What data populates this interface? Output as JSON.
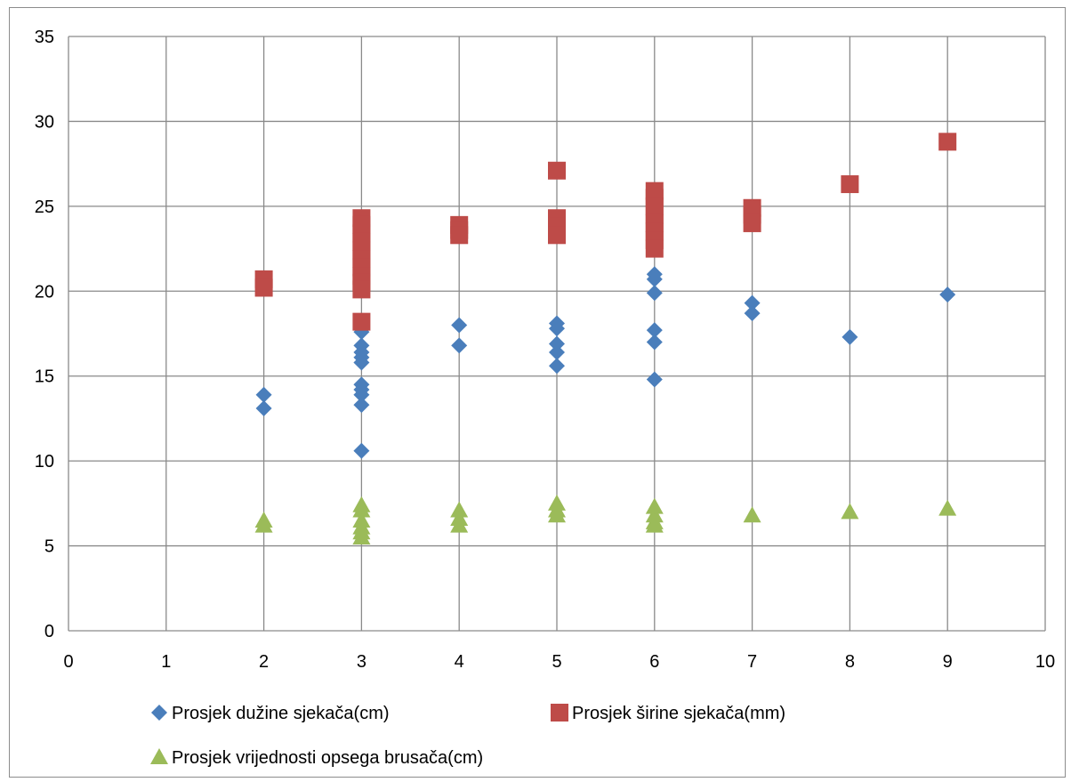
{
  "chart_data": {
    "type": "scatter",
    "title": "",
    "xlabel": "",
    "ylabel": "",
    "xlim": [
      0,
      10
    ],
    "ylim": [
      0,
      35
    ],
    "xticks": [
      0,
      1,
      2,
      3,
      4,
      5,
      6,
      7,
      8,
      9,
      10
    ],
    "yticks": [
      0,
      5,
      10,
      15,
      20,
      25,
      30,
      35
    ],
    "grid": true,
    "legend": "bottom",
    "series": [
      {
        "name": "Prosjek dužine sjekača(cm)",
        "marker": "diamond",
        "color": "#4a7ebb",
        "points": [
          [
            2,
            13.9
          ],
          [
            2,
            13.1
          ],
          [
            3,
            17.6
          ],
          [
            3,
            16.8
          ],
          [
            3,
            16.4
          ],
          [
            3,
            16.1
          ],
          [
            3,
            15.8
          ],
          [
            3,
            14.5
          ],
          [
            3,
            14.2
          ],
          [
            3,
            13.9
          ],
          [
            3,
            13.3
          ],
          [
            3,
            10.6
          ],
          [
            4,
            18.0
          ],
          [
            4,
            16.8
          ],
          [
            5,
            18.1
          ],
          [
            5,
            17.8
          ],
          [
            5,
            16.9
          ],
          [
            5,
            16.4
          ],
          [
            5,
            15.6
          ],
          [
            6,
            21.0
          ],
          [
            6,
            20.7
          ],
          [
            6,
            19.9
          ],
          [
            6,
            17.7
          ],
          [
            6,
            17.0
          ],
          [
            6,
            14.8
          ],
          [
            7,
            19.3
          ],
          [
            7,
            18.7
          ],
          [
            8,
            17.3
          ],
          [
            9,
            19.8
          ]
        ]
      },
      {
        "name": "Prosjek širine sjekača(mm)",
        "marker": "square",
        "color": "#be4b48",
        "points": [
          [
            2,
            20.7
          ],
          [
            2,
            20.2
          ],
          [
            3,
            24.3
          ],
          [
            3,
            23.9
          ],
          [
            3,
            23.4
          ],
          [
            3,
            22.9
          ],
          [
            3,
            22.4
          ],
          [
            3,
            21.9
          ],
          [
            3,
            21.4
          ],
          [
            3,
            20.9
          ],
          [
            3,
            20.5
          ],
          [
            3,
            20.1
          ],
          [
            3,
            18.2
          ],
          [
            4,
            23.9
          ],
          [
            4,
            23.6
          ],
          [
            4,
            23.3
          ],
          [
            5,
            27.1
          ],
          [
            5,
            24.3
          ],
          [
            5,
            23.8
          ],
          [
            5,
            23.3
          ],
          [
            6,
            25.9
          ],
          [
            6,
            25.5
          ],
          [
            6,
            25.0
          ],
          [
            6,
            24.5
          ],
          [
            6,
            24.0
          ],
          [
            6,
            23.5
          ],
          [
            6,
            23.0
          ],
          [
            6,
            22.5
          ],
          [
            7,
            24.9
          ],
          [
            7,
            24.5
          ],
          [
            7,
            24.0
          ],
          [
            8,
            26.3
          ],
          [
            9,
            28.8
          ]
        ]
      },
      {
        "name": "Prosjek vrijednosti opsega brusača(cm)",
        "marker": "triangle",
        "color": "#9bbb59",
        "points": [
          [
            2,
            6.5
          ],
          [
            2,
            6.2
          ],
          [
            3,
            7.4
          ],
          [
            3,
            7.1
          ],
          [
            3,
            6.5
          ],
          [
            3,
            6.1
          ],
          [
            3,
            5.8
          ],
          [
            3,
            5.5
          ],
          [
            4,
            7.1
          ],
          [
            4,
            6.6
          ],
          [
            4,
            6.2
          ],
          [
            5,
            7.5
          ],
          [
            5,
            7.1
          ],
          [
            5,
            6.8
          ],
          [
            6,
            7.3
          ],
          [
            6,
            6.8
          ],
          [
            6,
            6.4
          ],
          [
            6,
            6.2
          ],
          [
            7,
            6.8
          ],
          [
            8,
            7.0
          ],
          [
            9,
            7.2
          ]
        ]
      }
    ]
  }
}
